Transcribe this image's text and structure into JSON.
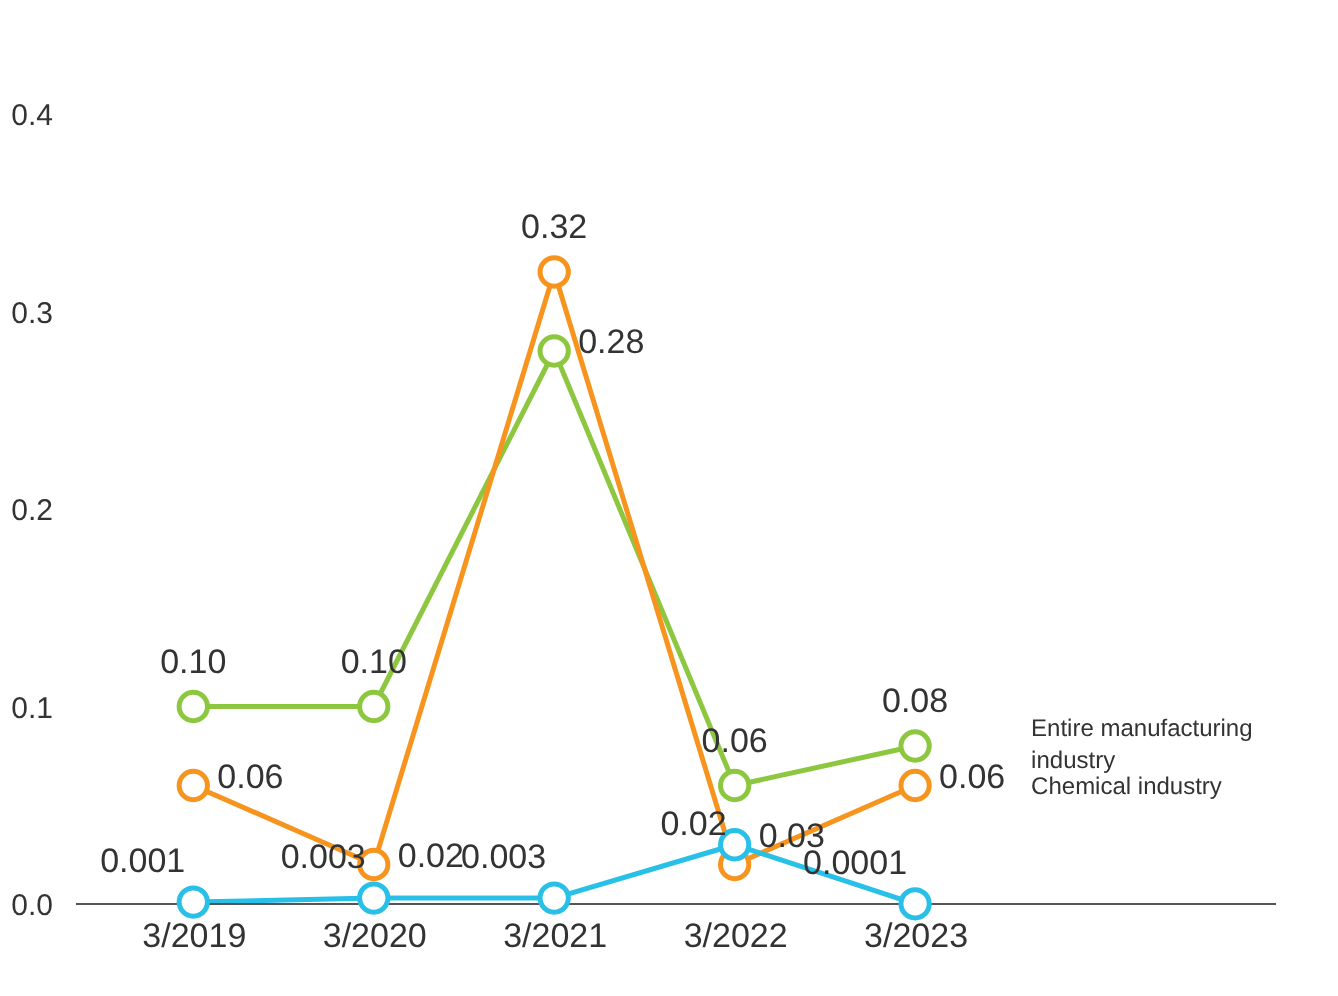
{
  "chart_data": {
    "type": "line",
    "categories": [
      "3/2019",
      "3/2020",
      "3/2021",
      "3/2022",
      "3/2023"
    ],
    "series": [
      {
        "name": "Entire manufacturing industry",
        "color": "#8dc63f",
        "values": [
          0.1,
          0.1,
          0.28,
          0.06,
          0.08
        ],
        "value_labels": [
          "0.10",
          "0.10",
          "0.28",
          "0.06",
          "0.08"
        ]
      },
      {
        "name": "Chemical industry",
        "color": "#f7941d",
        "values": [
          0.06,
          0.02,
          0.32,
          0.02,
          0.06
        ],
        "value_labels": [
          "0.06",
          "0.02",
          "0.32",
          "0.02",
          "0.06"
        ]
      },
      {
        "color": "#29c0e8",
        "values": [
          0.001,
          0.003,
          0.003,
          0.03,
          0.0001
        ],
        "value_labels": [
          "0.001",
          "0.003",
          "0.003",
          "0.03",
          "0.0001"
        ]
      }
    ],
    "ylim": [
      0,
      0.4
    ],
    "yticks": [
      {
        "value": 0,
        "label": "0.0"
      },
      {
        "value": 0.1,
        "label": "0.1"
      },
      {
        "value": 0.2,
        "label": "0.2"
      },
      {
        "value": 0.3,
        "label": "0.3"
      },
      {
        "value": 0.4,
        "label": "0.4"
      }
    ],
    "marker": "circle",
    "line_style": "solid",
    "grid": false,
    "legend": false
  }
}
